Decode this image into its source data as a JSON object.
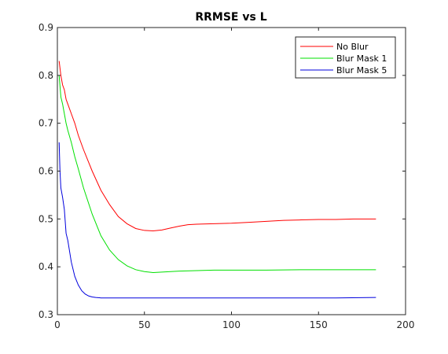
{
  "chart_data": {
    "type": "line",
    "title": "RRMSE vs L",
    "xlabel": "",
    "ylabel": "",
    "xlim": [
      0,
      200
    ],
    "ylim": [
      0.3,
      0.9
    ],
    "xticks": [
      0,
      50,
      100,
      150,
      200
    ],
    "yticks": [
      0.3,
      0.4,
      0.5,
      0.6,
      0.7,
      0.8,
      0.9
    ],
    "xtick_labels": [
      "0",
      "50",
      "100",
      "150",
      "200"
    ],
    "ytick_labels": [
      "0.3",
      "0.4",
      "0.5",
      "0.6",
      "0.7",
      "0.8",
      "0.9"
    ],
    "grid": false,
    "legend_position": "top-right",
    "series": [
      {
        "name": "No Blur",
        "color": "#ff0000",
        "x": [
          1,
          2,
          3,
          4,
          5,
          6,
          8,
          10,
          12,
          15,
          20,
          25,
          30,
          35,
          40,
          45,
          50,
          55,
          60,
          65,
          70,
          75,
          80,
          90,
          100,
          110,
          120,
          130,
          140,
          150,
          160,
          170,
          183
        ],
        "y": [
          0.83,
          0.8,
          0.78,
          0.77,
          0.75,
          0.74,
          0.72,
          0.7,
          0.675,
          0.645,
          0.6,
          0.56,
          0.53,
          0.505,
          0.49,
          0.48,
          0.476,
          0.475,
          0.477,
          0.481,
          0.485,
          0.488,
          0.489,
          0.49,
          0.491,
          0.493,
          0.495,
          0.497,
          0.498,
          0.499,
          0.499,
          0.5,
          0.5
        ]
      },
      {
        "name": "Blur Mask 1",
        "color": "#00e000",
        "x": [
          1,
          2,
          3,
          4,
          5,
          6,
          8,
          10,
          12,
          15,
          20,
          25,
          30,
          35,
          40,
          45,
          50,
          55,
          60,
          65,
          70,
          80,
          90,
          100,
          120,
          140,
          160,
          183
        ],
        "y": [
          0.8,
          0.755,
          0.74,
          0.72,
          0.7,
          0.685,
          0.66,
          0.63,
          0.605,
          0.565,
          0.51,
          0.465,
          0.435,
          0.415,
          0.402,
          0.394,
          0.39,
          0.388,
          0.389,
          0.39,
          0.391,
          0.392,
          0.393,
          0.393,
          0.393,
          0.394,
          0.394,
          0.394
        ]
      },
      {
        "name": "Blur Mask 5",
        "color": "#0000dd",
        "x": [
          1,
          1.5,
          2,
          3,
          4,
          5,
          6,
          8,
          10,
          12,
          14,
          16,
          18,
          20,
          22,
          25,
          30,
          40,
          60,
          80,
          100,
          120,
          140,
          160,
          183
        ],
        "y": [
          0.66,
          0.6,
          0.565,
          0.545,
          0.52,
          0.47,
          0.455,
          0.41,
          0.38,
          0.362,
          0.35,
          0.343,
          0.339,
          0.337,
          0.336,
          0.335,
          0.335,
          0.335,
          0.335,
          0.335,
          0.335,
          0.335,
          0.335,
          0.335,
          0.336
        ]
      }
    ]
  }
}
